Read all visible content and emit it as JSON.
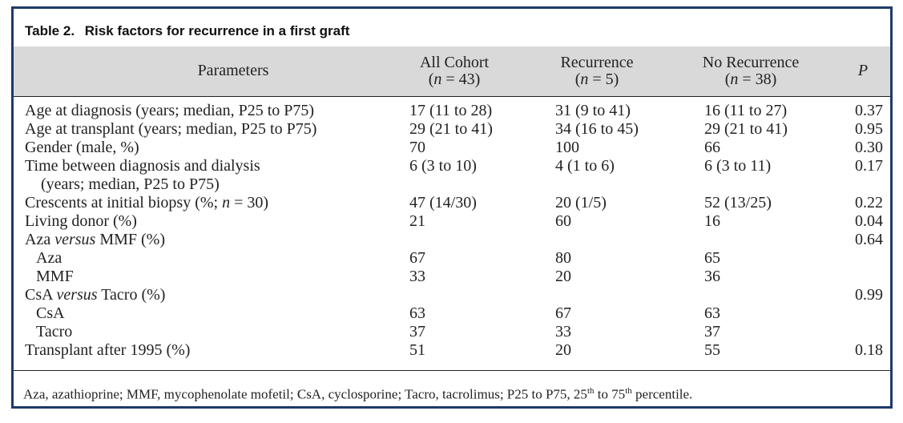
{
  "table": {
    "label": "Table 2.",
    "title": "Risk factors for recurrence in a first graft",
    "headers": {
      "parameters": "Parameters",
      "all_cohort": "All Cohort",
      "all_cohort_n": "(n = 43)",
      "recurrence": "Recurrence",
      "recurrence_n": "(n = 5)",
      "no_recurrence": "No Recurrence",
      "no_recurrence_n": "(n = 38)",
      "p": "P"
    },
    "rows": [
      {
        "param": "Age at diagnosis (years; median, P25 to P75)",
        "all": "17 (11 to 28)",
        "rec": "31 (9 to 41)",
        "norec": "16 (11 to 27)",
        "p": "0.37"
      },
      {
        "param": "Age at transplant (years; median, P25 to P75)",
        "all": "29 (21 to 41)",
        "rec": "34 (16 to 45)",
        "norec": "29 (21 to 41)",
        "p": "0.95"
      },
      {
        "param": "Gender (male, %)",
        "all": "70",
        "rec": "100",
        "norec": "66",
        "p": "0.30"
      },
      {
        "param": "Time between diagnosis and dialysis",
        "all": "6 (3 to 10)",
        "rec": "4 (1 to 6)",
        "norec": "6 (3 to 11)",
        "p": "0.17"
      },
      {
        "param": "(years; median, P25 to P75)",
        "all": "",
        "rec": "",
        "norec": "",
        "p": ""
      },
      {
        "param": "Crescents at initial biopsy (%; n = 30)",
        "all": "47 (14/30)",
        "rec": "20 (1/5)",
        "norec": "52 (13/25)",
        "p": "0.22"
      },
      {
        "param": "Living donor (%)",
        "all": "21",
        "rec": "60",
        "norec": "16",
        "p": "0.04"
      },
      {
        "param": "Aza versus MMF (%)",
        "all": "",
        "rec": "",
        "norec": "",
        "p": "0.64"
      },
      {
        "param": "Aza",
        "all": "67",
        "rec": "80",
        "norec": "65",
        "p": ""
      },
      {
        "param": "MMF",
        "all": "33",
        "rec": "20",
        "norec": "36",
        "p": ""
      },
      {
        "param": "CsA versus Tacro (%)",
        "all": "",
        "rec": "",
        "norec": "",
        "p": "0.99"
      },
      {
        "param": "CsA",
        "all": "63",
        "rec": "67",
        "norec": "63",
        "p": ""
      },
      {
        "param": "Tacro",
        "all": "37",
        "rec": "33",
        "norec": "37",
        "p": ""
      },
      {
        "param": "Transplant after 1995 (%)",
        "all": "51",
        "rec": "20",
        "norec": "55",
        "p": "0.18"
      }
    ],
    "footnote": "Aza, azathioprine; MMF, mycophenolate mofetil; CsA, cyclosporine; Tacro, tacrolimus; P25 to P75, 25th to 75th percentile.",
    "footnote_parts": {
      "a": "Aza, azathioprine; MMF, mycophenolate mofetil; CsA, cyclosporine; Tacro, tacrolimus; P25 to P75, 25",
      "sup1": "th",
      "b": " to 75",
      "sup2": "th",
      "c": " percentile."
    }
  }
}
